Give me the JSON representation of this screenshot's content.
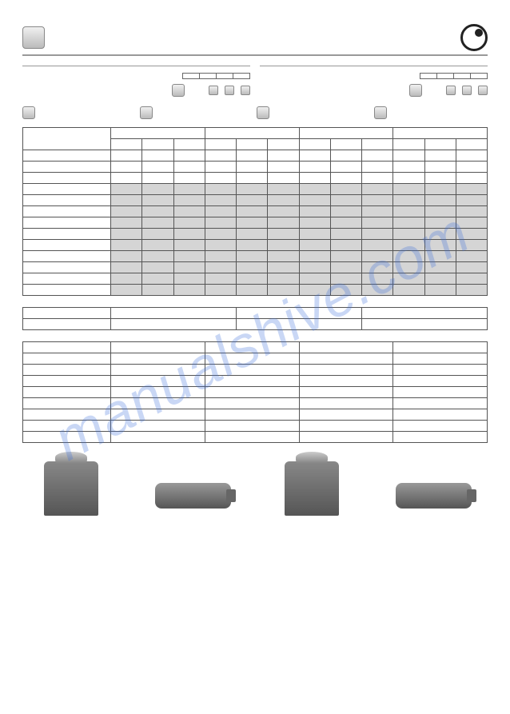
{
  "watermark": "manualshive.com",
  "header": {
    "title": ""
  },
  "models": {
    "left": {
      "labels": [
        "",
        "",
        "",
        ""
      ],
      "boxes": 4
    },
    "right": {
      "labels": [
        "",
        "",
        "",
        ""
      ],
      "boxes": 4
    }
  },
  "legend_items": [
    "",
    "",
    "",
    ""
  ],
  "spec_table": {
    "col_groups": 4,
    "cols_per_group": 3,
    "row_labels": [
      "",
      "",
      "",
      "",
      "",
      "",
      "",
      "",
      "",
      "",
      "",
      "",
      ""
    ],
    "shaded_rows": [
      3,
      4,
      5,
      6,
      7,
      8,
      9,
      10,
      11,
      12
    ],
    "cells": []
  },
  "mid_table": {
    "cols": 4,
    "rows": 2,
    "labels": [
      "",
      "",
      "",
      ""
    ]
  },
  "bottom_table": {
    "cols": 4,
    "rows": 8,
    "row_labels": [
      "",
      "",
      "",
      "",
      "",
      "",
      "",
      ""
    ]
  },
  "colors": {
    "border": "#555",
    "shade": "#d5d5d5",
    "box_light": "#f0f0f0",
    "box_dark": "#bbb",
    "wm": "rgba(60,110,220,0.28)"
  }
}
